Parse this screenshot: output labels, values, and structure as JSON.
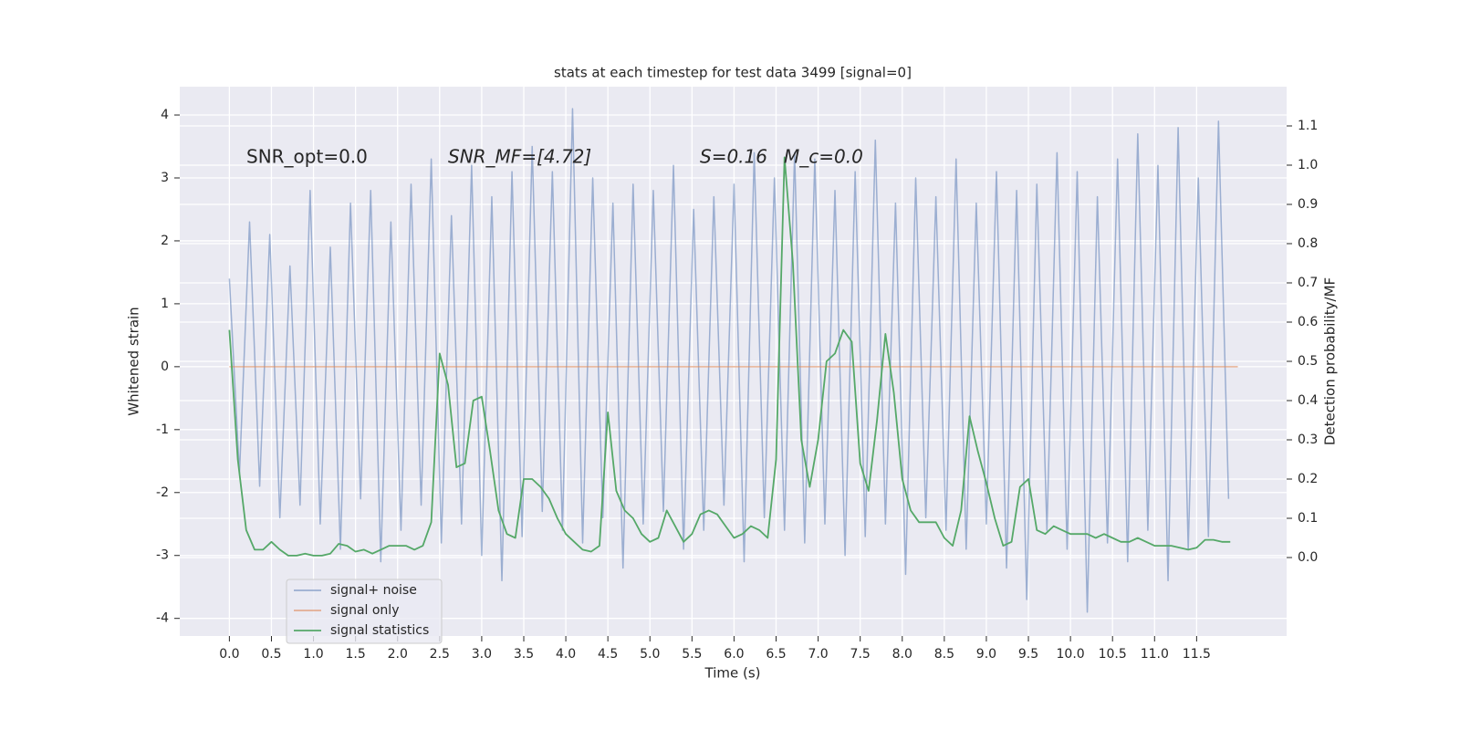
{
  "chart_data": {
    "type": "line",
    "title": "stats at each timestep for test data 3499 [signal=0]",
    "xlabel": "Time (s)",
    "ylabel": "Whitened strain",
    "y2label": "Detection probability/MF",
    "annotations": [
      "SNR_opt=0.0",
      "SNR_MF=[4.72]",
      "S=0.16",
      "M_c=0.0"
    ],
    "xlim": [
      -0.59,
      12.57
    ],
    "ylim": [
      -4.28,
      4.45
    ],
    "y2lim": [
      -0.2,
      1.2
    ],
    "xticks": [
      {
        "value": 0,
        "label": "0.0"
      },
      0.5,
      {
        "value": 1,
        "label": "1.0"
      },
      1.5,
      {
        "value": 2,
        "label": "2.0"
      },
      2.5,
      {
        "value": 3,
        "label": "3.0"
      },
      3.5,
      {
        "value": 4,
        "label": "4.0"
      },
      4.5,
      {
        "value": 5,
        "label": "5.0"
      },
      5.5,
      {
        "value": 6,
        "label": "6.0"
      },
      6.5,
      {
        "value": 7,
        "label": "7.0"
      },
      7.5,
      {
        "value": 8,
        "label": "8.0"
      },
      8.5,
      {
        "value": 9,
        "label": "9.0"
      },
      9.5,
      {
        "value": 10,
        "label": "10.0"
      },
      10.5,
      {
        "value": 11,
        "label": "11.0"
      },
      11.5
    ],
    "yticks": [
      -4,
      -3,
      -2,
      -1,
      0,
      1,
      2,
      3,
      4
    ],
    "y2ticks": [
      {
        "value": 0,
        "label": "0.0"
      },
      0.1,
      0.2,
      0.3,
      0.4,
      0.5,
      0.6,
      0.7,
      0.8,
      0.9,
      {
        "value": 1,
        "label": "1.0"
      },
      1.1
    ],
    "grid": true,
    "legend_loc": "lower left",
    "series": [
      {
        "name": "signal+ noise",
        "color": "#4c72b0",
        "x": [
          0,
          0.12,
          0.24,
          0.36,
          0.48,
          0.6,
          0.72,
          0.84,
          0.96,
          1.08,
          1.2,
          1.32,
          1.44,
          1.56,
          1.68,
          1.8,
          1.92,
          2.04,
          2.16,
          2.28,
          2.4,
          2.52,
          2.64,
          2.76,
          2.88,
          3.0,
          3.12,
          3.24,
          3.36,
          3.48,
          3.6,
          3.72,
          3.84,
          3.96,
          4.08,
          4.2,
          4.32,
          4.44,
          4.56,
          4.68,
          4.8,
          4.92,
          5.04,
          5.16,
          5.28,
          5.4,
          5.52,
          5.64,
          5.76,
          5.88,
          6.0,
          6.12,
          6.24,
          6.36,
          6.48,
          6.6,
          6.72,
          6.84,
          6.96,
          7.08,
          7.2,
          7.32,
          7.44,
          7.56,
          7.68,
          7.8,
          7.92,
          8.04,
          8.16,
          8.28,
          8.4,
          8.52,
          8.64,
          8.76,
          8.88,
          9.0,
          9.12,
          9.24,
          9.36,
          9.48,
          9.6,
          9.72,
          9.84,
          9.96,
          10.08,
          10.2,
          10.32,
          10.44,
          10.56,
          10.68,
          10.8,
          10.92,
          11.04,
          11.16,
          11.28,
          11.4,
          11.52,
          11.64,
          11.76,
          11.88
        ],
        "values": [
          1.4,
          -1.7,
          2.3,
          -1.9,
          2.1,
          -2.4,
          1.6,
          -2.2,
          2.8,
          -2.5,
          1.9,
          -2.9,
          2.6,
          -2.1,
          2.8,
          -3.1,
          2.3,
          -2.6,
          2.9,
          -2.2,
          3.3,
          -2.8,
          2.4,
          -2.5,
          3.2,
          -3.0,
          2.7,
          -3.4,
          3.1,
          -2.7,
          3.5,
          -2.3,
          3.1,
          -2.6,
          4.1,
          -2.8,
          3.0,
          -2.4,
          2.6,
          -3.2,
          2.9,
          -2.5,
          2.8,
          -2.3,
          3.2,
          -2.9,
          2.5,
          -2.6,
          2.7,
          -2.2,
          2.9,
          -3.1,
          3.4,
          -2.4,
          3.0,
          -2.6,
          3.4,
          -2.8,
          3.3,
          -2.5,
          2.8,
          -3.0,
          3.1,
          -2.7,
          3.6,
          -2.5,
          2.6,
          -3.3,
          3.0,
          -2.4,
          2.7,
          -2.6,
          3.3,
          -2.9,
          2.6,
          -2.5,
          3.1,
          -3.2,
          2.8,
          -3.7,
          2.9,
          -2.6,
          3.4,
          -2.9,
          3.1,
          -3.9,
          2.7,
          -2.8,
          3.3,
          -3.1,
          3.7,
          -2.6,
          3.2,
          -3.4,
          3.8,
          -2.9,
          3.0,
          -2.7,
          3.9,
          -2.1
        ]
      },
      {
        "name": "signal only",
        "color": "#dd8452",
        "x": [
          0,
          11.99
        ],
        "values": [
          0,
          0
        ]
      },
      {
        "name": "signal statistics",
        "color": "#55a868",
        "axis": "y2",
        "x": [
          0,
          0.1,
          0.2,
          0.3,
          0.4,
          0.5,
          0.6,
          0.7,
          0.8,
          0.9,
          1.0,
          1.1,
          1.2,
          1.3,
          1.4,
          1.5,
          1.6,
          1.7,
          1.8,
          1.9,
          2.0,
          2.1,
          2.2,
          2.3,
          2.4,
          2.5,
          2.6,
          2.7,
          2.8,
          2.9,
          3.0,
          3.1,
          3.2,
          3.3,
          3.4,
          3.5,
          3.6,
          3.7,
          3.8,
          3.9,
          4.0,
          4.1,
          4.2,
          4.3,
          4.4,
          4.5,
          4.6,
          4.7,
          4.8,
          4.9,
          5.0,
          5.1,
          5.2,
          5.3,
          5.4,
          5.5,
          5.6,
          5.7,
          5.8,
          5.9,
          6.0,
          6.1,
          6.2,
          6.3,
          6.4,
          6.5,
          6.6,
          6.7,
          6.8,
          6.9,
          7.0,
          7.1,
          7.2,
          7.3,
          7.4,
          7.5,
          7.6,
          7.7,
          7.8,
          7.9,
          8.0,
          8.1,
          8.2,
          8.3,
          8.4,
          8.5,
          8.6,
          8.7,
          8.8,
          8.9,
          9.0,
          9.1,
          9.2,
          9.3,
          9.4,
          9.5,
          9.6,
          9.7,
          9.8,
          9.9,
          10.0,
          10.1,
          10.2,
          10.3,
          10.4,
          10.5,
          10.6,
          10.7,
          10.8,
          10.9,
          11.0,
          11.1,
          11.2,
          11.3,
          11.4,
          11.5,
          11.6,
          11.7,
          11.8,
          11.9
        ],
        "values": [
          0.58,
          0.25,
          0.07,
          0.02,
          0.02,
          0.04,
          0.02,
          0.005,
          0.005,
          0.01,
          0.005,
          0.005,
          0.01,
          0.035,
          0.03,
          0.015,
          0.02,
          0.01,
          0.02,
          0.03,
          0.03,
          0.03,
          0.02,
          0.03,
          0.09,
          0.52,
          0.44,
          0.23,
          0.24,
          0.4,
          0.41,
          0.27,
          0.12,
          0.06,
          0.05,
          0.2,
          0.2,
          0.18,
          0.15,
          0.1,
          0.06,
          0.04,
          0.02,
          0.015,
          0.03,
          0.37,
          0.17,
          0.12,
          0.1,
          0.06,
          0.04,
          0.05,
          0.12,
          0.08,
          0.04,
          0.06,
          0.11,
          0.12,
          0.11,
          0.08,
          0.05,
          0.06,
          0.08,
          0.07,
          0.05,
          0.25,
          1.02,
          0.75,
          0.3,
          0.18,
          0.3,
          0.5,
          0.52,
          0.58,
          0.55,
          0.24,
          0.17,
          0.35,
          0.57,
          0.42,
          0.2,
          0.12,
          0.09,
          0.09,
          0.09,
          0.05,
          0.03,
          0.12,
          0.36,
          0.27,
          0.19,
          0.1,
          0.03,
          0.04,
          0.18,
          0.2,
          0.07,
          0.06,
          0.08,
          0.07,
          0.06,
          0.06,
          0.06,
          0.05,
          0.06,
          0.05,
          0.04,
          0.04,
          0.05,
          0.04,
          0.03,
          0.03,
          0.03,
          0.025,
          0.02,
          0.025,
          0.045,
          0.045,
          0.04,
          0.04
        ]
      }
    ]
  }
}
